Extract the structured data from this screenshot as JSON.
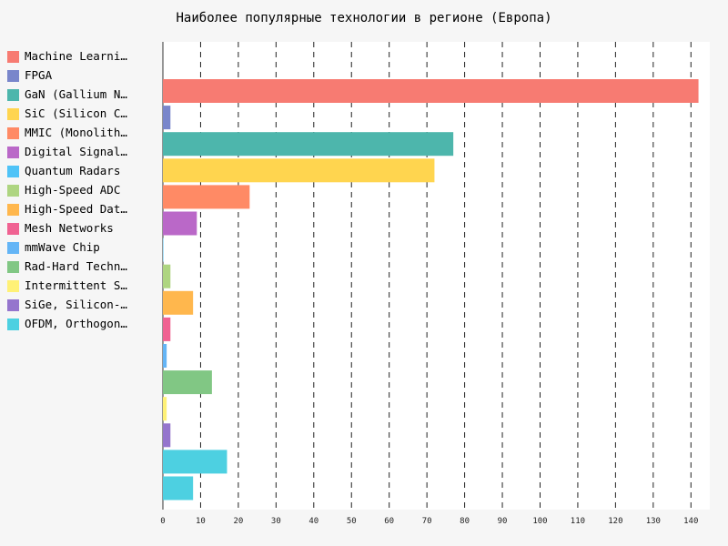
{
  "chart_data": {
    "type": "bar",
    "orientation": "horizontal",
    "title": "Наиболее популярные технологии в регионе (Европа)",
    "xlabel": "",
    "ylabel": "",
    "xlim": [
      0,
      145
    ],
    "x_ticks": [
      0,
      10,
      20,
      30,
      40,
      50,
      60,
      70,
      80,
      90,
      100,
      110,
      120,
      130,
      140
    ],
    "grid": "vertical dashed",
    "legend_position": "left",
    "series": [
      {
        "name": "Machine Learni…",
        "value": 142,
        "color": "#f77b72"
      },
      {
        "name": "FPGA",
        "value": 2,
        "color": "#7986cb"
      },
      {
        "name": "GaN (Gallium N…",
        "value": 77,
        "color": "#4db6ac"
      },
      {
        "name": "SiC (Silicon C…",
        "value": 72,
        "color": "#ffd54f"
      },
      {
        "name": "MMIC (Monolith…",
        "value": 23,
        "color": "#ff8a65"
      },
      {
        "name": "Digital Signal…",
        "value": 9,
        "color": "#ba68c8"
      },
      {
        "name": "Quantum Radars",
        "value": 0,
        "color": "#4fc3f7"
      },
      {
        "name": "High-Speed ADC",
        "value": 2,
        "color": "#aed581"
      },
      {
        "name": "High-Speed Dat…",
        "value": 8,
        "color": "#ffb74d"
      },
      {
        "name": "Mesh Networks",
        "value": 2,
        "color": "#f06292"
      },
      {
        "name": "mmWave Chip",
        "value": 1,
        "color": "#64b5f6"
      },
      {
        "name": "Rad-Hard Techn…",
        "value": 13,
        "color": "#81c784"
      },
      {
        "name": "Intermittent S…",
        "value": 1,
        "color": "#fff176"
      },
      {
        "name": "SiGe, Silicon-…",
        "value": 2,
        "color": "#9575cd"
      },
      {
        "name": "OFDM, Orthogon…",
        "value": 17,
        "color": "#4dd0e1"
      },
      {
        "name": "",
        "value": 8,
        "color": "#4dd0e1"
      }
    ]
  }
}
